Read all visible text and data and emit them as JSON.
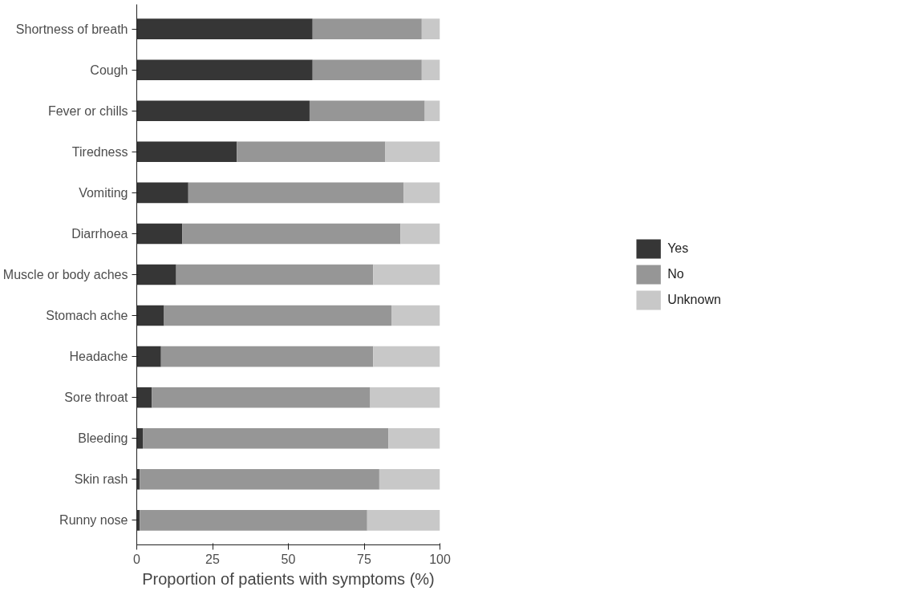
{
  "chart_data": {
    "type": "bar",
    "orientation": "horizontal",
    "stacked": true,
    "xlabel": "Proportion of patients with symptoms (%)",
    "categories": [
      "Shortness of breath",
      "Cough",
      "Fever or chills",
      "Tiredness",
      "Vomiting",
      "Diarrhoea",
      "Muscle or body aches",
      "Stomach ache",
      "Headache",
      "Sore throat",
      "Bleeding",
      "Skin rash",
      "Runny nose"
    ],
    "series": [
      {
        "name": "Yes",
        "color": "#363636",
        "values": [
          58,
          58,
          57,
          33,
          17,
          15,
          13,
          9,
          8,
          5,
          2,
          1,
          1
        ]
      },
      {
        "name": "No",
        "color": "#969696",
        "values": [
          36,
          36,
          38,
          49,
          71,
          72,
          65,
          75,
          70,
          72,
          81,
          79,
          75
        ]
      },
      {
        "name": "Unknown",
        "color": "#c8c8c8",
        "values": [
          6,
          6,
          5,
          18,
          12,
          13,
          22,
          16,
          22,
          23,
          17,
          20,
          24
        ]
      }
    ],
    "xlim": [
      0,
      100
    ],
    "xticks": [
      0,
      25,
      50,
      75,
      100
    ],
    "grid": false,
    "legend": "right"
  }
}
